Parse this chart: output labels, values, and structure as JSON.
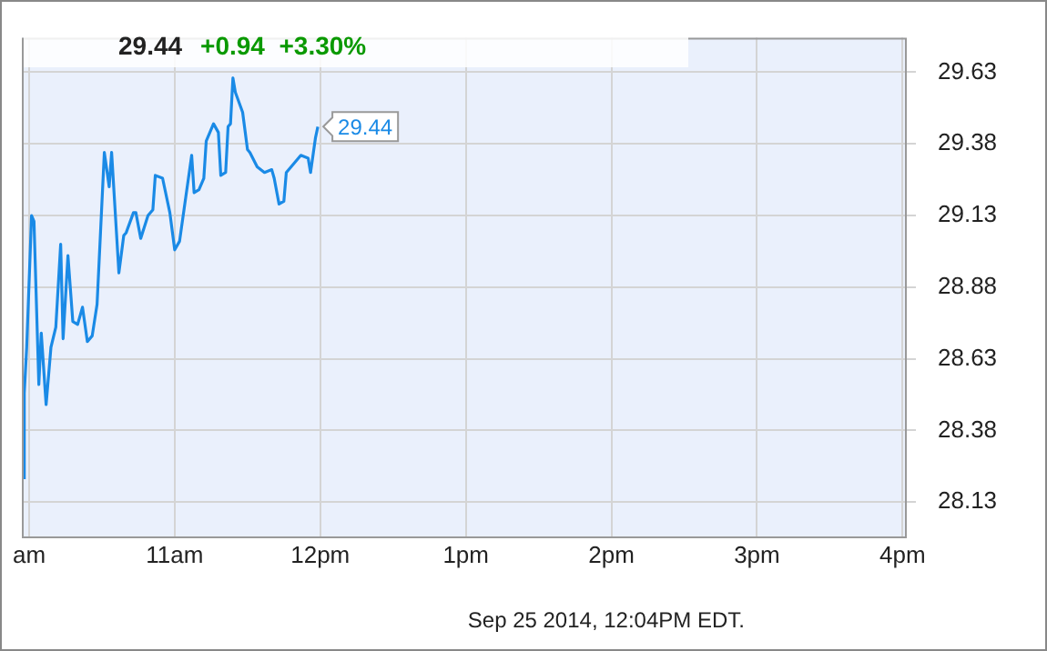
{
  "chart_data": {
    "type": "line",
    "title": "29.44",
    "subtitle": "+0.94  +3.30%",
    "x": [
      "2014-09-25T09:58",
      "2014-09-25T09:58",
      "2014-09-25T09:59",
      "2014-09-25T10:01",
      "2014-09-25T10:02",
      "2014-09-25T10:04",
      "2014-09-25T10:05",
      "2014-09-25T10:07",
      "2014-09-25T10:09",
      "2014-09-25T10:11",
      "2014-09-25T10:13",
      "2014-09-25T10:14",
      "2014-09-25T10:16",
      "2014-09-25T10:18",
      "2014-09-25T10:20",
      "2014-09-25T10:22",
      "2014-09-25T10:24",
      "2014-09-25T10:26",
      "2014-09-25T10:28",
      "2014-09-25T10:31",
      "2014-09-25T10:33",
      "2014-09-25T10:34",
      "2014-09-25T10:37",
      "2014-09-25T10:39",
      "2014-09-25T10:40",
      "2014-09-25T10:43",
      "2014-09-25T10:44",
      "2014-09-25T10:46",
      "2014-09-25T10:49",
      "2014-09-25T10:51",
      "2014-09-25T10:52",
      "2014-09-25T10:55",
      "2014-09-25T10:58",
      "2014-09-25T11:00",
      "2014-09-25T11:02",
      "2014-09-25T11:07",
      "2014-09-25T11:08",
      "2014-09-25T11:10",
      "2014-09-25T11:12",
      "2014-09-25T11:13",
      "2014-09-25T11:16",
      "2014-09-25T11:18",
      "2014-09-25T11:19",
      "2014-09-25T11:21",
      "2014-09-25T11:22",
      "2014-09-25T11:23",
      "2014-09-25T11:24",
      "2014-09-25T11:25",
      "2014-09-25T11:28",
      "2014-09-25T11:30",
      "2014-09-25T11:31",
      "2014-09-25T11:34",
      "2014-09-25T11:37",
      "2014-09-25T11:40",
      "2014-09-25T11:41",
      "2014-09-25T11:43",
      "2014-09-25T11:45",
      "2014-09-25T11:46",
      "2014-09-25T11:49",
      "2014-09-25T11:52",
      "2014-09-25T11:55",
      "2014-09-25T11:56",
      "2014-09-25T11:58",
      "2014-09-25T11:59"
    ],
    "series": [
      {
        "color": "#1a8ae6",
        "values": [
          28.21,
          28.51,
          28.67,
          29.13,
          29.11,
          28.54,
          28.72,
          28.47,
          28.67,
          28.74,
          29.03,
          28.7,
          28.99,
          28.76,
          28.75,
          28.81,
          28.69,
          28.71,
          28.82,
          29.35,
          29.23,
          29.35,
          28.93,
          29.06,
          29.07,
          29.14,
          29.14,
          29.05,
          29.13,
          29.15,
          29.27,
          29.26,
          29.14,
          29.01,
          29.04,
          29.34,
          29.21,
          29.22,
          29.26,
          29.39,
          29.45,
          29.42,
          29.27,
          29.28,
          29.44,
          29.45,
          29.61,
          29.56,
          29.49,
          29.36,
          29.35,
          29.3,
          29.28,
          29.29,
          29.26,
          29.17,
          29.18,
          29.28,
          29.31,
          29.34,
          29.33,
          29.28,
          29.4,
          29.44
        ]
      }
    ],
    "xlim": [
      "2014-09-25T09:57",
      "2014-09-25T16:01"
    ],
    "xticks": [
      {
        "value": "2014-09-25T10:00",
        "label": "am"
      },
      {
        "value": "2014-09-25T11:00",
        "label": "11am"
      },
      {
        "value": "2014-09-25T12:00",
        "label": "12pm"
      },
      {
        "value": "2014-09-25T13:00",
        "label": "1pm"
      },
      {
        "value": "2014-09-25T14:00",
        "label": "2pm"
      },
      {
        "value": "2014-09-25T15:00",
        "label": "3pm"
      },
      {
        "value": "2014-09-25T16:00",
        "label": "4pm"
      }
    ],
    "ylim": [
      28.01,
      29.75
    ],
    "yticks": [
      {
        "value": 28.13,
        "label": "28.13"
      },
      {
        "value": 28.38,
        "label": "28.38"
      },
      {
        "value": 28.63,
        "label": "28.63"
      },
      {
        "value": 28.88,
        "label": "28.88"
      },
      {
        "value": 29.13,
        "label": "29.13"
      },
      {
        "value": 29.38,
        "label": "29.38"
      },
      {
        "value": 29.63,
        "label": "29.63"
      }
    ],
    "grid": true,
    "legend": false,
    "marker": "none",
    "line_style": "solid",
    "annotations": [
      {
        "text": "29.44",
        "x": "2014-09-25T11:59",
        "y": 29.44
      },
      "Sep 25 2014, 12:04PM EDT."
    ]
  }
}
